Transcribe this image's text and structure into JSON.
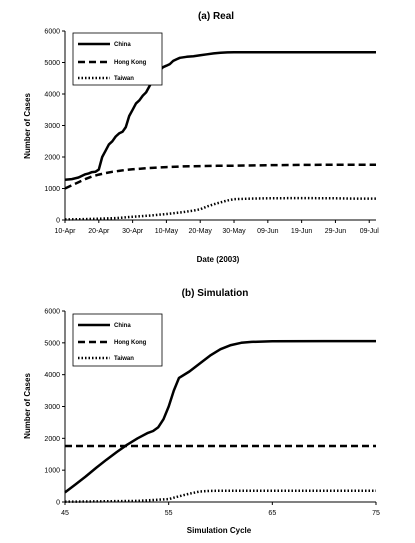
{
  "chart_data": [
    {
      "id": "real",
      "type": "line",
      "title": "(a) Real",
      "xlabel": "Date (2003)",
      "ylabel": "Number of Cases",
      "ylim": [
        0,
        6000
      ],
      "yticks": [
        "0",
        "1000",
        "2000",
        "3000",
        "4000",
        "5000",
        "6000"
      ],
      "xlim": [
        0,
        92
      ],
      "xticks": [
        {
          "x": 0,
          "label": "10-Apr"
        },
        {
          "x": 10,
          "label": "20-Apr"
        },
        {
          "x": 20,
          "label": "30-Apr"
        },
        {
          "x": 30,
          "label": "10-May"
        },
        {
          "x": 40,
          "label": "20-May"
        },
        {
          "x": 50,
          "label": "30-May"
        },
        {
          "x": 60,
          "label": "09-Jun"
        },
        {
          "x": 70,
          "label": "19-Jun"
        },
        {
          "x": 80,
          "label": "29-Jun"
        },
        {
          "x": 90,
          "label": "09-Jul"
        }
      ],
      "legend_position": "top-left",
      "grid": false,
      "series": [
        {
          "name": "China",
          "dash": "solid",
          "points": [
            [
              0,
              1280
            ],
            [
              2,
              1300
            ],
            [
              4,
              1350
            ],
            [
              5,
              1400
            ],
            [
              6,
              1450
            ],
            [
              7,
              1480
            ],
            [
              8,
              1520
            ],
            [
              9,
              1530
            ],
            [
              10,
              1600
            ],
            [
              11,
              2000
            ],
            [
              12,
              2200
            ],
            [
              13,
              2400
            ],
            [
              14,
              2500
            ],
            [
              15,
              2650
            ],
            [
              16,
              2750
            ],
            [
              17,
              2800
            ],
            [
              18,
              2950
            ],
            [
              19,
              3300
            ],
            [
              20,
              3500
            ],
            [
              21,
              3700
            ],
            [
              22,
              3800
            ],
            [
              23,
              3950
            ],
            [
              24,
              4050
            ],
            [
              25,
              4250
            ],
            [
              26,
              4450
            ],
            [
              27,
              4600
            ],
            [
              28,
              4750
            ],
            [
              29,
              4850
            ],
            [
              30,
              4900
            ],
            [
              31,
              4950
            ],
            [
              32,
              5050
            ],
            [
              33,
              5100
            ],
            [
              34,
              5150
            ],
            [
              36,
              5180
            ],
            [
              38,
              5200
            ],
            [
              40,
              5230
            ],
            [
              42,
              5260
            ],
            [
              44,
              5290
            ],
            [
              46,
              5310
            ],
            [
              48,
              5320
            ],
            [
              50,
              5325
            ],
            [
              55,
              5327
            ],
            [
              60,
              5328
            ],
            [
              70,
              5328
            ],
            [
              80,
              5328
            ],
            [
              92,
              5328
            ]
          ]
        },
        {
          "name": "Hong Kong",
          "dash": "dashed",
          "points": [
            [
              0,
              1000
            ],
            [
              2,
              1100
            ],
            [
              4,
              1200
            ],
            [
              6,
              1300
            ],
            [
              8,
              1380
            ],
            [
              10,
              1440
            ],
            [
              12,
              1490
            ],
            [
              14,
              1530
            ],
            [
              16,
              1560
            ],
            [
              18,
              1590
            ],
            [
              20,
              1610
            ],
            [
              25,
              1650
            ],
            [
              30,
              1680
            ],
            [
              35,
              1700
            ],
            [
              40,
              1710
            ],
            [
              45,
              1720
            ],
            [
              50,
              1725
            ],
            [
              60,
              1740
            ],
            [
              70,
              1750
            ],
            [
              80,
              1755
            ],
            [
              92,
              1755
            ]
          ]
        },
        {
          "name": "Taiwan",
          "dash": "dotted",
          "points": [
            [
              0,
              20
            ],
            [
              5,
              25
            ],
            [
              10,
              40
            ],
            [
              15,
              60
            ],
            [
              20,
              100
            ],
            [
              25,
              140
            ],
            [
              30,
              190
            ],
            [
              35,
              250
            ],
            [
              38,
              300
            ],
            [
              40,
              340
            ],
            [
              42,
              430
            ],
            [
              44,
              500
            ],
            [
              46,
              560
            ],
            [
              48,
              620
            ],
            [
              50,
              660
            ],
            [
              55,
              680
            ],
            [
              60,
              690
            ],
            [
              70,
              695
            ],
            [
              80,
              690
            ],
            [
              85,
              680
            ],
            [
              92,
              680
            ]
          ]
        }
      ]
    },
    {
      "id": "simulation",
      "type": "line",
      "title": "(b) Simulation",
      "xlabel": "Simulation Cycle",
      "ylabel": "Number of Cases",
      "ylim": [
        0,
        6000
      ],
      "yticks": [
        "0",
        "1000",
        "2000",
        "3000",
        "4000",
        "5000",
        "6000"
      ],
      "xlim": [
        45,
        75
      ],
      "xticks": [
        {
          "x": 45,
          "label": "45"
        },
        {
          "x": 55,
          "label": "55"
        },
        {
          "x": 65,
          "label": "65"
        },
        {
          "x": 75,
          "label": "75"
        }
      ],
      "legend_position": "top-left",
      "grid": false,
      "series": [
        {
          "name": "China",
          "dash": "solid",
          "points": [
            [
              45,
              300
            ],
            [
              46,
              550
            ],
            [
              47,
              800
            ],
            [
              48,
              1070
            ],
            [
              49,
              1330
            ],
            [
              50,
              1570
            ],
            [
              51,
              1800
            ],
            [
              52,
              2000
            ],
            [
              53,
              2170
            ],
            [
              53.5,
              2230
            ],
            [
              54,
              2350
            ],
            [
              54.5,
              2600
            ],
            [
              55,
              3000
            ],
            [
              55.5,
              3500
            ],
            [
              56,
              3900
            ],
            [
              57,
              4100
            ],
            [
              58,
              4350
            ],
            [
              59,
              4600
            ],
            [
              60,
              4800
            ],
            [
              61,
              4930
            ],
            [
              62,
              5000
            ],
            [
              63,
              5030
            ],
            [
              65,
              5050
            ],
            [
              70,
              5055
            ],
            [
              75,
              5055
            ]
          ]
        },
        {
          "name": "Hong Kong",
          "dash": "dashed",
          "points": [
            [
              45,
              1760
            ],
            [
              75,
              1760
            ]
          ]
        },
        {
          "name": "Taiwan",
          "dash": "dotted",
          "points": [
            [
              45,
              10
            ],
            [
              48,
              20
            ],
            [
              52,
              35
            ],
            [
              55,
              90
            ],
            [
              56,
              180
            ],
            [
              57,
              260
            ],
            [
              58,
              330
            ],
            [
              59,
              350
            ],
            [
              60,
              355
            ],
            [
              65,
              355
            ],
            [
              75,
              355
            ]
          ]
        }
      ]
    }
  ]
}
